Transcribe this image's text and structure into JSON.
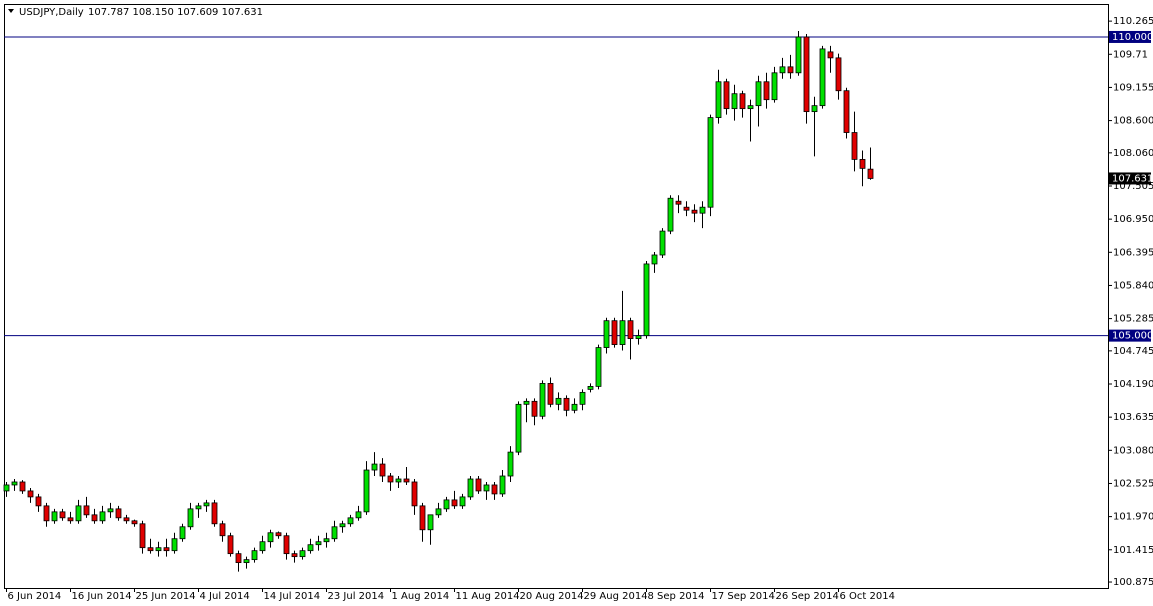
{
  "chart_data": {
    "type": "candlestick",
    "title": "USDJPY,Daily",
    "header_values": "107.787 108.150 107.609 107.631",
    "categories": [
      "6 Jun 2014",
      null,
      null,
      null,
      null,
      null,
      null,
      null,
      "16 Jun 2014",
      null,
      null,
      null,
      null,
      null,
      null,
      null,
      "25 Jun 2014",
      null,
      null,
      null,
      null,
      null,
      null,
      null,
      "4 Jul 2014",
      null,
      null,
      null,
      null,
      null,
      null,
      null,
      "14 Jul 2014",
      null,
      null,
      null,
      null,
      null,
      null,
      null,
      "23 Jul 2014",
      null,
      null,
      null,
      null,
      null,
      null,
      null,
      "1 Aug 2014",
      null,
      null,
      null,
      null,
      null,
      null,
      null,
      "11 Aug 2014",
      null,
      null,
      null,
      null,
      null,
      null,
      null,
      "20 Aug 2014",
      null,
      null,
      null,
      null,
      null,
      null,
      null,
      "29 Aug 2014",
      null,
      null,
      null,
      null,
      null,
      null,
      null,
      "8 Sep 2014",
      null,
      null,
      null,
      null,
      null,
      null,
      null,
      "17 Sep 2014",
      null,
      null,
      null,
      null,
      null,
      null,
      null,
      "26 Sep 2014",
      null,
      null,
      null,
      null,
      null,
      null,
      null,
      "6 Oct 2014",
      null,
      null,
      null,
      null
    ],
    "open": [
      102.4,
      102.5,
      102.55,
      102.4,
      102.3,
      102.15,
      101.9,
      102.05,
      101.95,
      101.9,
      102.15,
      102.0,
      101.9,
      102.05,
      102.1,
      101.95,
      101.9,
      101.85,
      101.45,
      101.4,
      101.45,
      101.4,
      101.6,
      101.8,
      102.1,
      102.15,
      102.2,
      101.85,
      101.65,
      101.35,
      101.2,
      101.25,
      101.4,
      101.55,
      101.7,
      101.65,
      101.35,
      101.3,
      101.4,
      101.5,
      101.55,
      101.6,
      101.8,
      101.85,
      101.95,
      102.05,
      102.75,
      102.85,
      102.65,
      102.55,
      102.6,
      102.55,
      102.15,
      101.75,
      102.0,
      102.1,
      102.25,
      102.15,
      102.3,
      102.6,
      102.4,
      102.5,
      102.35,
      102.65,
      103.05,
      103.85,
      103.9,
      103.65,
      104.2,
      103.85,
      103.95,
      103.75,
      103.85,
      104.1,
      104.15,
      104.8,
      105.25,
      104.85,
      105.25,
      104.95,
      105.0,
      106.2,
      106.35,
      106.75,
      107.25,
      107.15,
      107.1,
      107.05,
      107.15,
      108.65,
      109.25,
      108.8,
      109.05,
      108.8,
      108.85,
      109.25,
      108.95,
      109.4,
      109.5,
      109.4,
      110.0,
      108.75,
      108.85,
      109.75,
      109.65,
      109.1,
      108.4,
      107.95,
      107.787
    ],
    "high": [
      102.55,
      102.6,
      102.58,
      102.45,
      102.35,
      102.2,
      102.1,
      102.1,
      102.05,
      102.25,
      102.3,
      102.1,
      102.15,
      102.2,
      102.15,
      102.0,
      101.92,
      101.9,
      101.6,
      101.55,
      101.6,
      101.7,
      101.85,
      102.2,
      102.2,
      102.25,
      102.25,
      101.9,
      101.7,
      101.4,
      101.3,
      101.45,
      101.65,
      101.75,
      101.72,
      101.7,
      101.4,
      101.45,
      101.6,
      101.65,
      101.7,
      101.9,
      101.9,
      102.0,
      102.15,
      102.9,
      103.05,
      102.95,
      102.7,
      102.65,
      102.8,
      102.6,
      102.2,
      102.0,
      102.2,
      102.3,
      102.4,
      102.35,
      102.65,
      102.65,
      102.55,
      102.55,
      102.75,
      103.15,
      103.9,
      103.95,
      103.95,
      104.25,
      104.3,
      104.05,
      104.0,
      103.95,
      104.1,
      104.2,
      104.85,
      105.3,
      105.3,
      105.75,
      105.3,
      105.1,
      106.25,
      106.4,
      106.8,
      107.35,
      107.35,
      107.25,
      107.2,
      107.25,
      108.7,
      109.45,
      109.3,
      109.2,
      109.1,
      108.95,
      109.35,
      109.4,
      109.5,
      109.65,
      109.7,
      110.1,
      110.05,
      109.0,
      109.85,
      109.85,
      109.72,
      109.15,
      108.75,
      108.1,
      108.15
    ],
    "low": [
      102.3,
      102.4,
      102.35,
      102.2,
      102.05,
      101.8,
      101.85,
      101.9,
      101.85,
      101.85,
      101.95,
      101.85,
      101.85,
      101.95,
      101.9,
      101.85,
      101.8,
      101.35,
      101.35,
      101.3,
      101.3,
      101.35,
      101.55,
      101.75,
      101.95,
      102.05,
      101.8,
      101.55,
      101.3,
      101.05,
      101.1,
      101.2,
      101.35,
      101.45,
      101.6,
      101.25,
      101.2,
      101.25,
      101.35,
      101.4,
      101.45,
      101.55,
      101.7,
      101.8,
      101.9,
      102.0,
      102.65,
      102.55,
      102.4,
      102.45,
      102.5,
      102.0,
      101.55,
      101.5,
      101.95,
      102.05,
      102.1,
      102.1,
      102.25,
      102.35,
      102.25,
      102.25,
      102.3,
      102.55,
      103.0,
      103.55,
      103.5,
      103.6,
      103.8,
      103.75,
      103.65,
      103.7,
      103.75,
      104.05,
      104.1,
      104.7,
      104.8,
      104.75,
      104.6,
      104.85,
      104.95,
      106.05,
      106.3,
      106.7,
      107.05,
      107.0,
      106.9,
      106.8,
      107.0,
      108.55,
      108.7,
      108.6,
      108.65,
      108.25,
      108.5,
      108.8,
      108.9,
      109.3,
      109.3,
      109.35,
      108.55,
      108.0,
      108.8,
      109.4,
      108.95,
      108.3,
      107.75,
      107.5,
      107.609
    ],
    "close": [
      102.5,
      102.55,
      102.4,
      102.3,
      102.15,
      101.9,
      102.05,
      101.95,
      101.9,
      102.15,
      102.0,
      101.9,
      102.05,
      102.1,
      101.95,
      101.9,
      101.85,
      101.45,
      101.4,
      101.45,
      101.4,
      101.6,
      101.8,
      102.1,
      102.15,
      102.2,
      101.85,
      101.65,
      101.35,
      101.2,
      101.25,
      101.4,
      101.55,
      101.7,
      101.65,
      101.35,
      101.3,
      101.4,
      101.5,
      101.55,
      101.6,
      101.8,
      101.85,
      101.95,
      102.05,
      102.75,
      102.85,
      102.65,
      102.55,
      102.6,
      102.55,
      102.15,
      101.75,
      102.0,
      102.1,
      102.25,
      102.15,
      102.3,
      102.6,
      102.4,
      102.5,
      102.35,
      102.65,
      103.05,
      103.85,
      103.9,
      103.65,
      104.2,
      103.85,
      103.95,
      103.75,
      103.85,
      104.05,
      104.15,
      104.8,
      105.25,
      104.85,
      105.25,
      104.95,
      105.0,
      106.2,
      106.35,
      106.75,
      107.3,
      107.2,
      107.1,
      107.05,
      107.15,
      108.65,
      109.25,
      108.8,
      109.05,
      108.8,
      108.85,
      109.25,
      108.95,
      109.4,
      109.5,
      109.4,
      110.0,
      108.75,
      108.85,
      109.8,
      109.65,
      109.1,
      108.4,
      107.95,
      107.8,
      107.631
    ],
    "up_color": "#00e000",
    "down_color": "#e00000",
    "ylim": [
      100.775,
      110.535
    ],
    "yticks": [
      110.265,
      109.71,
      109.155,
      {
        "value": 108.6,
        "label": "108.600"
      },
      {
        "value": 108.06,
        "label": "108.060"
      },
      107.505,
      {
        "value": 106.95,
        "label": "106.950"
      },
      106.395,
      {
        "value": 105.84,
        "label": "105.840"
      },
      105.285,
      104.745,
      {
        "value": 104.19,
        "label": "104.190"
      },
      103.635,
      {
        "value": 103.08,
        "label": "103.080"
      },
      102.525,
      {
        "value": 101.97,
        "label": "101.970"
      },
      101.415,
      100.875
    ],
    "hlines": [
      {
        "value": 110,
        "label": "110.000"
      },
      {
        "value": 105,
        "label": "105.000"
      }
    ],
    "hline_color": "#000080",
    "last_price": 107.631
  }
}
